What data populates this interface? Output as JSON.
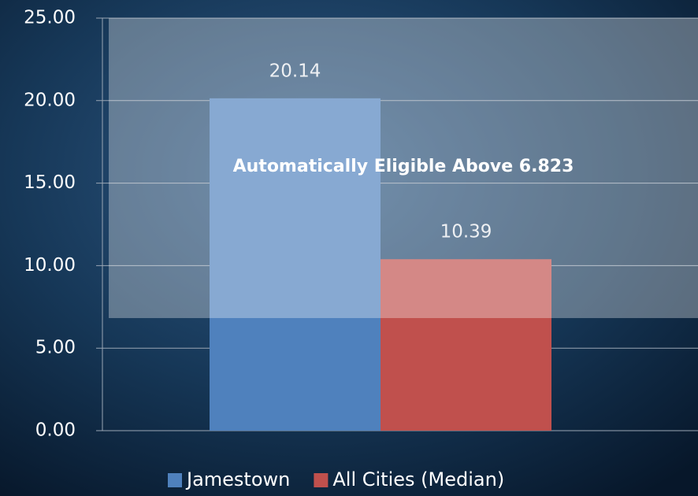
{
  "chart_data": {
    "type": "bar",
    "categories": [
      null
    ],
    "series": [
      {
        "name": "Jamestown",
        "color": "#4f81bd",
        "values": [
          20.14
        ]
      },
      {
        "name": "All Cities (Median)",
        "color": "#c0504d",
        "values": [
          10.39
        ]
      }
    ],
    "ylim": [
      0,
      25
    ],
    "yticks": [
      {
        "value": 0,
        "label": "0.00"
      },
      {
        "value": 5,
        "label": "5.00"
      },
      {
        "value": 10,
        "label": "10.00"
      },
      {
        "value": 15,
        "label": "15.00"
      },
      {
        "value": 20,
        "label": "20.00"
      },
      {
        "value": 25,
        "label": "25.00"
      }
    ],
    "grid": true,
    "legend": "bottom",
    "annotation": {
      "text": "Automatically Eligible Above 6.823",
      "from": 6.823
    }
  }
}
